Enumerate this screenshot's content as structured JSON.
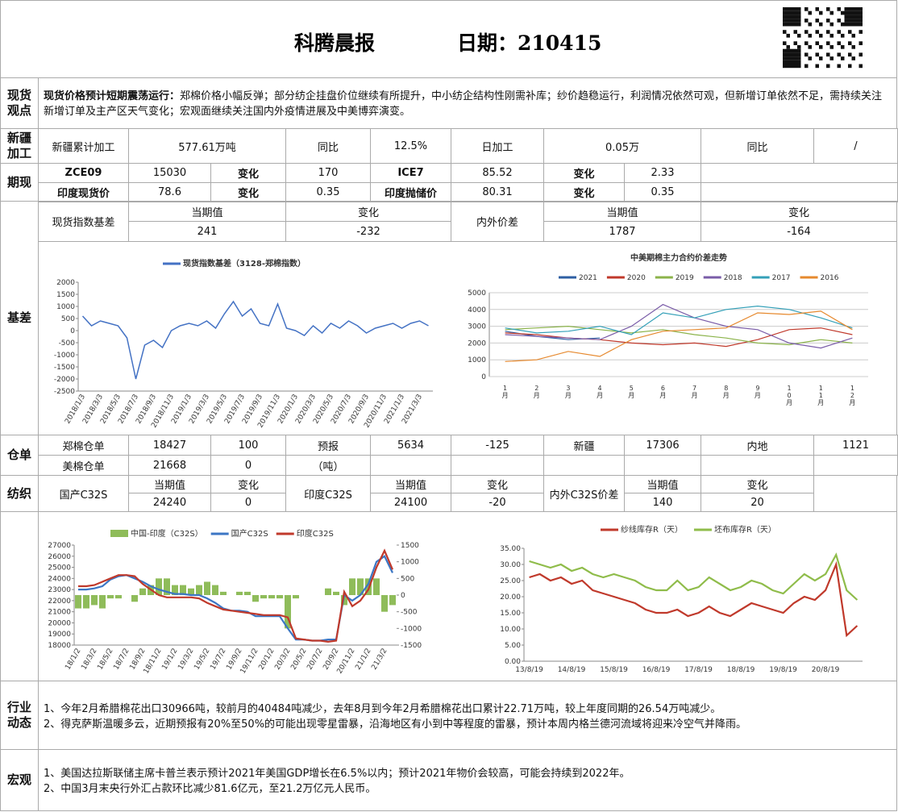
{
  "header": {
    "title": "科腾晨报",
    "date": "日期：210415"
  },
  "spot": {
    "label": [
      "现货",
      "观点"
    ],
    "lead": "现货价格预计短期震荡运行：",
    "text": "郑棉价格小幅反弹；部分纺企挂盘价位继续有所提升，中小纺企结构性刚需补库；纱价趋稳运行，利润情况依然可观，但新增订单依然不足，需持续关注新增订单及主产区天气变化；宏观面继续关注国内外疫情进展及中美博弈演变。"
  },
  "xinjiang": {
    "label": [
      "新疆",
      "加工"
    ],
    "cells": [
      "新疆累计加工",
      "577.61万吨",
      "同比",
      "12.5%",
      "日加工",
      "0.05万",
      "同比",
      "/"
    ]
  },
  "futures": {
    "label": "期现",
    "rows": [
      [
        "ZCE09",
        "15030",
        "变化",
        "170",
        "ICE7",
        "85.52",
        "变化",
        "2.33"
      ],
      [
        "印度现货价",
        "78.6",
        "变化",
        "0.35",
        "印度抛储价",
        "80.31",
        "变化",
        "0.35"
      ]
    ]
  },
  "basis": {
    "label": "基差",
    "name": "现货指数基差",
    "head": [
      "当期值",
      "变化"
    ],
    "values": [
      "241",
      "-232"
    ],
    "spread_name": "内外价差",
    "spread_head": [
      "当期值",
      "变化"
    ],
    "spread_values": [
      "1787",
      "-164"
    ]
  },
  "warehouse": {
    "label": "仓单",
    "rows": [
      [
        "郑棉仓单",
        "18427",
        "100",
        "预报",
        "5634",
        "-125",
        "新疆",
        "17306",
        "内地",
        "1121"
      ],
      [
        "美棉仓单",
        "21668",
        "0",
        "（吨）"
      ]
    ]
  },
  "textile": {
    "label": "纺织",
    "items": [
      {
        "name": "国产C32S",
        "head": [
          "当期值",
          "变化"
        ],
        "values": [
          "24240",
          "0"
        ]
      },
      {
        "name": "印度C32S",
        "head": [
          "当期值",
          "变化"
        ],
        "values": [
          "24100",
          "-20"
        ]
      },
      {
        "name": "内外C32S价差",
        "head": [
          "当期值",
          "变化"
        ],
        "values": [
          "140",
          "20"
        ]
      }
    ]
  },
  "industry": {
    "label": [
      "行业",
      "动态"
    ],
    "lines": [
      "1、今年2月希腊棉花出口30966吨，较前月的40484吨减少，去年8月到今年2月希腊棉花出口累计22.71万吨，较上年度同期的26.54万吨减少。",
      "2、得克萨斯温暖多云，近期预报有20%至50%的可能出现零星雷暴，沿海地区有小到中等程度的雷暴，预计本周内格兰德河流域将迎来冷空气并降雨。"
    ]
  },
  "macro": {
    "label": "宏观",
    "lines": [
      "1、美国达拉斯联储主席卡普兰表示预计2021年美国GDP增长在6.5%以内；预计2021年物价会较高，可能会持续到2022年。",
      "2、中国3月末央行外汇占款环比减少81.6亿元，至21.2万亿元人民币。"
    ]
  },
  "chart_data": [
    {
      "type": "line",
      "categories": [
        "2018/1/3",
        null,
        "2018/3/3",
        null,
        "2018/5/3",
        null,
        "2018/7/3",
        null,
        "2018/9/3",
        null,
        "2018/11/3",
        null,
        "2019/1/3",
        null,
        "2019/3/3",
        null,
        "2019/5/3",
        null,
        "2019/7/3",
        null,
        "2019/9/3",
        null,
        "2019/11/3",
        null,
        "2020/1/3",
        null,
        "2020/3/3",
        null,
        "2020/5/3",
        null,
        "2020/7/3",
        null,
        "2020/9/3",
        null,
        "2020/11/3",
        null,
        "2021/1/3",
        null,
        "2021/3/3",
        null
      ],
      "series": [
        {
          "name": "现货指数基差（3128-郑棉指数）",
          "color": "#4472c4",
          "values": [
            600,
            200,
            400,
            300,
            200,
            -300,
            -2000,
            -600,
            -400,
            -700,
            0,
            200,
            300,
            200,
            400,
            100,
            700,
            1200,
            600,
            900,
            300,
            200,
            1100,
            100,
            0,
            -200,
            200,
            -100,
            300,
            100,
            400,
            200,
            -100,
            100,
            200,
            300,
            100,
            300,
            400,
            200
          ]
        }
      ],
      "ylim": [
        -2500,
        2000
      ],
      "yticks": [
        -2500,
        -2000,
        -1500,
        -1000,
        -500,
        0,
        500,
        1000,
        1500,
        2000
      ],
      "grid": false,
      "legend": "top"
    },
    {
      "type": "line",
      "title": "中美期棉主力合约价差走势",
      "categories": [
        "1月",
        "2月",
        "3月",
        "4月",
        "5月",
        "6月",
        "7月",
        "8月",
        "9月",
        "10月",
        "11月",
        "12月"
      ],
      "series": [
        {
          "name": "2021",
          "color": "#2e5fa3",
          "values": [
            2700,
            2400,
            2200,
            2300,
            null,
            null,
            null,
            null,
            null,
            null,
            null,
            null
          ]
        },
        {
          "name": "2020",
          "color": "#c0392b",
          "values": [
            2600,
            2500,
            2300,
            2200,
            2000,
            1900,
            2000,
            1800,
            2200,
            2800,
            2900,
            2500
          ]
        },
        {
          "name": "2019",
          "color": "#8bb34a",
          "values": [
            2800,
            2900,
            3000,
            2800,
            2600,
            2800,
            2500,
            2300,
            2000,
            1900,
            2200,
            2000
          ]
        },
        {
          "name": "2018",
          "color": "#7a5ca8",
          "values": [
            2500,
            2400,
            2300,
            2200,
            3000,
            4300,
            3500,
            3000,
            2800,
            2000,
            1700,
            2300
          ]
        },
        {
          "name": "2017",
          "color": "#34a0b8",
          "values": [
            2900,
            2600,
            2700,
            3000,
            2500,
            3800,
            3500,
            4000,
            4200,
            4000,
            3500,
            2900
          ]
        },
        {
          "name": "2016",
          "color": "#e6892e",
          "values": [
            900,
            1000,
            1500,
            1200,
            2200,
            2700,
            2800,
            2900,
            3800,
            3700,
            3900,
            2800
          ]
        }
      ],
      "ylim": [
        0,
        5000
      ],
      "yticks": [
        0,
        1000,
        2000,
        3000,
        4000,
        5000
      ],
      "grid": true,
      "legend": "top"
    },
    {
      "type": "combo",
      "categories": [
        "18/1/2",
        null,
        "18/3/2",
        null,
        "18/5/2",
        null,
        "18/7/2",
        null,
        "18/9/2",
        null,
        "18/11/2",
        null,
        "19/1/2",
        null,
        "19/3/2",
        null,
        "19/5/2",
        null,
        "19/7/2",
        null,
        "19/9/2",
        null,
        "19/11/2",
        null,
        "20/1/2",
        null,
        "20/3/2",
        null,
        "20/5/2",
        null,
        "20/7/2",
        null,
        "20/9/2",
        null,
        "20/11/2",
        null,
        "21/1/2",
        null,
        "21/3/2",
        null
      ],
      "series": [
        {
          "name": "中国-印度（C32S）",
          "type": "bar",
          "axis": "y2",
          "color": "#8fbc5a",
          "values": [
            -400,
            -400,
            -300,
            -400,
            -100,
            -100,
            0,
            -200,
            200,
            300,
            500,
            500,
            300,
            300,
            200,
            300,
            400,
            300,
            100,
            0,
            100,
            100,
            -200,
            -100,
            -100,
            -100,
            -1000,
            -100,
            0,
            0,
            0,
            200,
            100,
            -300,
            500,
            500,
            500,
            500,
            -500,
            -300
          ]
        },
        {
          "name": "国产C32S",
          "type": "line",
          "color": "#3b76c4",
          "values": [
            23000,
            23000,
            23100,
            23300,
            23900,
            24200,
            24300,
            24000,
            23700,
            23300,
            23000,
            22800,
            22600,
            22600,
            22500,
            22500,
            22200,
            21800,
            21300,
            21100,
            21100,
            21000,
            20600,
            20600,
            20600,
            20600,
            19500,
            18500,
            18500,
            18400,
            18400,
            18500,
            18500,
            22500,
            22000,
            22500,
            23500,
            25500,
            26000,
            24500
          ]
        },
        {
          "name": "印度C32S",
          "type": "line",
          "color": "#c0392b",
          "values": [
            23300,
            23300,
            23400,
            23700,
            24000,
            24300,
            24300,
            24200,
            23500,
            23000,
            22500,
            22300,
            22300,
            22300,
            22300,
            22200,
            21800,
            21500,
            21200,
            21100,
            21000,
            20900,
            20800,
            20700,
            20700,
            20700,
            20500,
            18600,
            18500,
            18400,
            18400,
            18300,
            18400,
            22800,
            21500,
            22000,
            23000,
            25000,
            26500,
            24800
          ]
        }
      ],
      "ylim": [
        18000,
        27000
      ],
      "yticks": [
        18000,
        19000,
        20000,
        21000,
        22000,
        23000,
        24000,
        25000,
        26000,
        27000
      ],
      "y2lim": [
        -1500,
        1500
      ],
      "y2ticks": [
        -1500,
        -1000,
        -500,
        0,
        500,
        1000,
        1500
      ],
      "grid": false,
      "legend": "top"
    },
    {
      "type": "line",
      "categories": [
        "13/8/19",
        null,
        null,
        null,
        "14/8/19",
        null,
        null,
        null,
        "15/8/19",
        null,
        null,
        null,
        "16/8/19",
        null,
        null,
        null,
        "17/8/19",
        null,
        null,
        null,
        "18/8/19",
        null,
        null,
        null,
        "19/8/19",
        null,
        null,
        null,
        "20/8/19",
        null,
        null,
        null
      ],
      "series": [
        {
          "name": "纱线库存R（天）",
          "color": "#c0392b",
          "values": [
            26,
            27,
            25,
            26,
            24,
            25,
            22,
            21,
            20,
            19,
            18,
            16,
            15,
            15,
            16,
            14,
            15,
            17,
            15,
            14,
            16,
            18,
            17,
            16,
            15,
            18,
            20,
            19,
            22,
            30,
            8,
            11
          ]
        },
        {
          "name": "坯布库存R（天）",
          "color": "#8fbc4a",
          "values": [
            31,
            30,
            29,
            30,
            28,
            29,
            27,
            26,
            27,
            26,
            25,
            23,
            22,
            22,
            25,
            22,
            23,
            26,
            24,
            22,
            23,
            25,
            24,
            22,
            21,
            24,
            27,
            25,
            27,
            33,
            22,
            19
          ]
        }
      ],
      "ylim": [
        0,
        35
      ],
      "yticks": [
        {
          "value": 0,
          "label": "0.00"
        },
        {
          "value": 5,
          "label": "5.00"
        },
        {
          "value": 10,
          "label": "10.00"
        },
        {
          "value": 15,
          "label": "15.00"
        },
        {
          "value": 20,
          "label": "20.00"
        },
        {
          "value": 25,
          "label": "25.00"
        },
        {
          "value": 30,
          "label": "30.00"
        },
        {
          "value": 35,
          "label": "35.00"
        }
      ],
      "grid": false,
      "legend": "top"
    }
  ]
}
